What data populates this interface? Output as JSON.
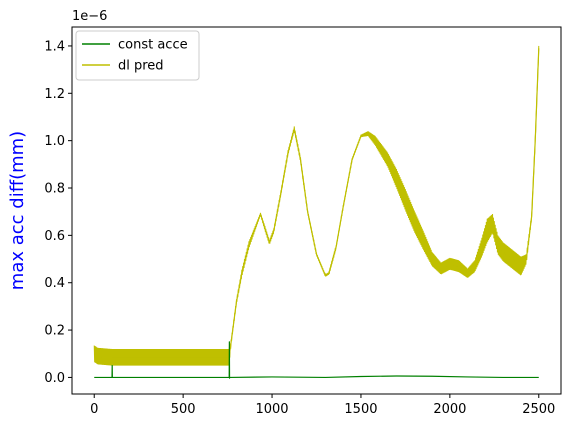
{
  "chart_data": {
    "type": "line",
    "title": "",
    "xlabel": "",
    "ylabel": "max acc diff(mm)",
    "ylabel_color": "#0000ff",
    "y_offset_text": "1e−6",
    "xlim": [
      -125,
      2625
    ],
    "ylim": [
      -0.07,
      1.48
    ],
    "xticks": [
      0,
      500,
      1000,
      1500,
      2000,
      2500
    ],
    "xtick_labels": [
      "0",
      "500",
      "1000",
      "1500",
      "2000",
      "2500"
    ],
    "yticks": [
      0.0,
      0.2,
      0.4,
      0.6,
      0.8,
      1.0,
      1.2,
      1.4
    ],
    "ytick_labels": [
      "0.0",
      "0.2",
      "0.4",
      "0.6",
      "0.8",
      "1.0",
      "1.2",
      "1.4"
    ],
    "grid": false,
    "legend_position": "top-left",
    "series": [
      {
        "name": "const acce",
        "color": "#008000",
        "x": [
          0,
          100,
          101,
          102,
          300,
          600,
          759,
          760,
          761,
          762,
          1000,
          1300,
          1500,
          1700,
          1900,
          2100,
          2300,
          2500
        ],
        "y": [
          0.0,
          0.0,
          0.05,
          0.0,
          0.0,
          0.0,
          0.0,
          0.15,
          -0.003,
          0.0,
          0.002,
          0.0,
          0.004,
          0.006,
          0.005,
          0.002,
          0.0,
          0.0
        ]
      },
      {
        "name": "dl pred",
        "color": "#bfbf00",
        "x": [
          0,
          20,
          100,
          300,
          500,
          700,
          758,
          770,
          800,
          830,
          870,
          900,
          935,
          960,
          985,
          1010,
          1050,
          1090,
          1125,
          1160,
          1200,
          1250,
          1300,
          1320,
          1360,
          1400,
          1450,
          1500,
          1540,
          1580,
          1650,
          1700,
          1750,
          1800,
          1850,
          1900,
          1950,
          2000,
          2050,
          2100,
          2140,
          2180,
          2210,
          2240,
          2270,
          2300,
          2350,
          2400,
          2430,
          2460,
          2480,
          2500
        ],
        "y": [
          0.1,
          0.09,
          0.085,
          0.085,
          0.085,
          0.085,
          0.085,
          0.15,
          0.32,
          0.44,
          0.56,
          0.62,
          0.69,
          0.63,
          0.57,
          0.62,
          0.78,
          0.95,
          1.05,
          0.92,
          0.7,
          0.52,
          0.43,
          0.44,
          0.55,
          0.72,
          0.92,
          1.02,
          1.03,
          1.0,
          0.92,
          0.84,
          0.75,
          0.66,
          0.58,
          0.5,
          0.46,
          0.48,
          0.47,
          0.44,
          0.47,
          0.55,
          0.62,
          0.65,
          0.56,
          0.53,
          0.5,
          0.47,
          0.5,
          0.68,
          1.0,
          1.39
        ],
        "band": [
          0.035,
          0.035,
          0.035,
          0.035,
          0.035,
          0.035,
          0.035,
          0.01,
          0.01,
          0.015,
          0.015,
          0.01,
          0.005,
          0.01,
          0.01,
          0.01,
          0.01,
          0.01,
          0.01,
          0.01,
          0.005,
          0.005,
          0.005,
          0.005,
          0.005,
          0.005,
          0.005,
          0.005,
          0.01,
          0.02,
          0.03,
          0.04,
          0.045,
          0.045,
          0.04,
          0.03,
          0.025,
          0.025,
          0.025,
          0.02,
          0.025,
          0.04,
          0.05,
          0.04,
          0.04,
          0.04,
          0.04,
          0.04,
          0.02,
          0.01,
          0.01,
          0.01
        ]
      }
    ]
  }
}
